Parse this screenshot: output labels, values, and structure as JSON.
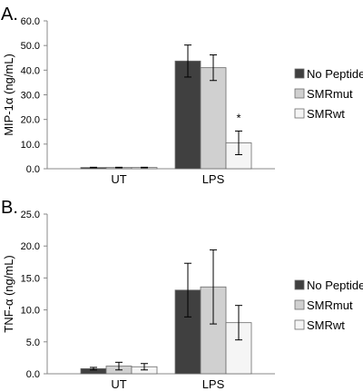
{
  "chart_data": [
    {
      "panel": "A.",
      "type": "bar",
      "ylabel": "MIP-1α (ng/mL)",
      "ylim": [
        0,
        60
      ],
      "yticks": [
        "0.0",
        "10.0",
        "20.0",
        "30.0",
        "40.0",
        "50.0",
        "60.0"
      ],
      "categories": [
        "UT",
        "LPS"
      ],
      "series": [
        {
          "name": "No Peptide",
          "values": [
            0.5,
            43.7
          ],
          "errors": [
            0.1,
            6.5
          ],
          "color": "#404040"
        },
        {
          "name": "SMRmut",
          "values": [
            0.5,
            41.0
          ],
          "errors": [
            0.1,
            5.2
          ],
          "color": "#d0d0d0"
        },
        {
          "name": "SMRwt",
          "values": [
            0.5,
            10.5
          ],
          "errors": [
            0.1,
            4.8
          ],
          "color": "#f5f5f5"
        }
      ],
      "annotations": [
        {
          "text": "*",
          "category": "LPS",
          "series": "SMRwt"
        }
      ],
      "legend": "right"
    },
    {
      "panel": "B.",
      "type": "bar",
      "ylabel": "TNF-α (ng/mL)",
      "ylim": [
        0,
        25
      ],
      "yticks": [
        "0.0",
        "5.0",
        "10.0",
        "15.0",
        "20.0",
        "25.0"
      ],
      "categories": [
        "UT",
        "LPS"
      ],
      "series": [
        {
          "name": "No Peptide",
          "values": [
            0.8,
            13.1
          ],
          "errors": [
            0.2,
            4.2
          ],
          "color": "#404040"
        },
        {
          "name": "SMRmut",
          "values": [
            1.2,
            13.6
          ],
          "errors": [
            0.6,
            5.8
          ],
          "color": "#d0d0d0"
        },
        {
          "name": "SMRwt",
          "values": [
            1.1,
            8.0
          ],
          "errors": [
            0.5,
            2.7
          ],
          "color": "#f5f5f5"
        }
      ],
      "annotations": [],
      "legend": "right"
    }
  ]
}
